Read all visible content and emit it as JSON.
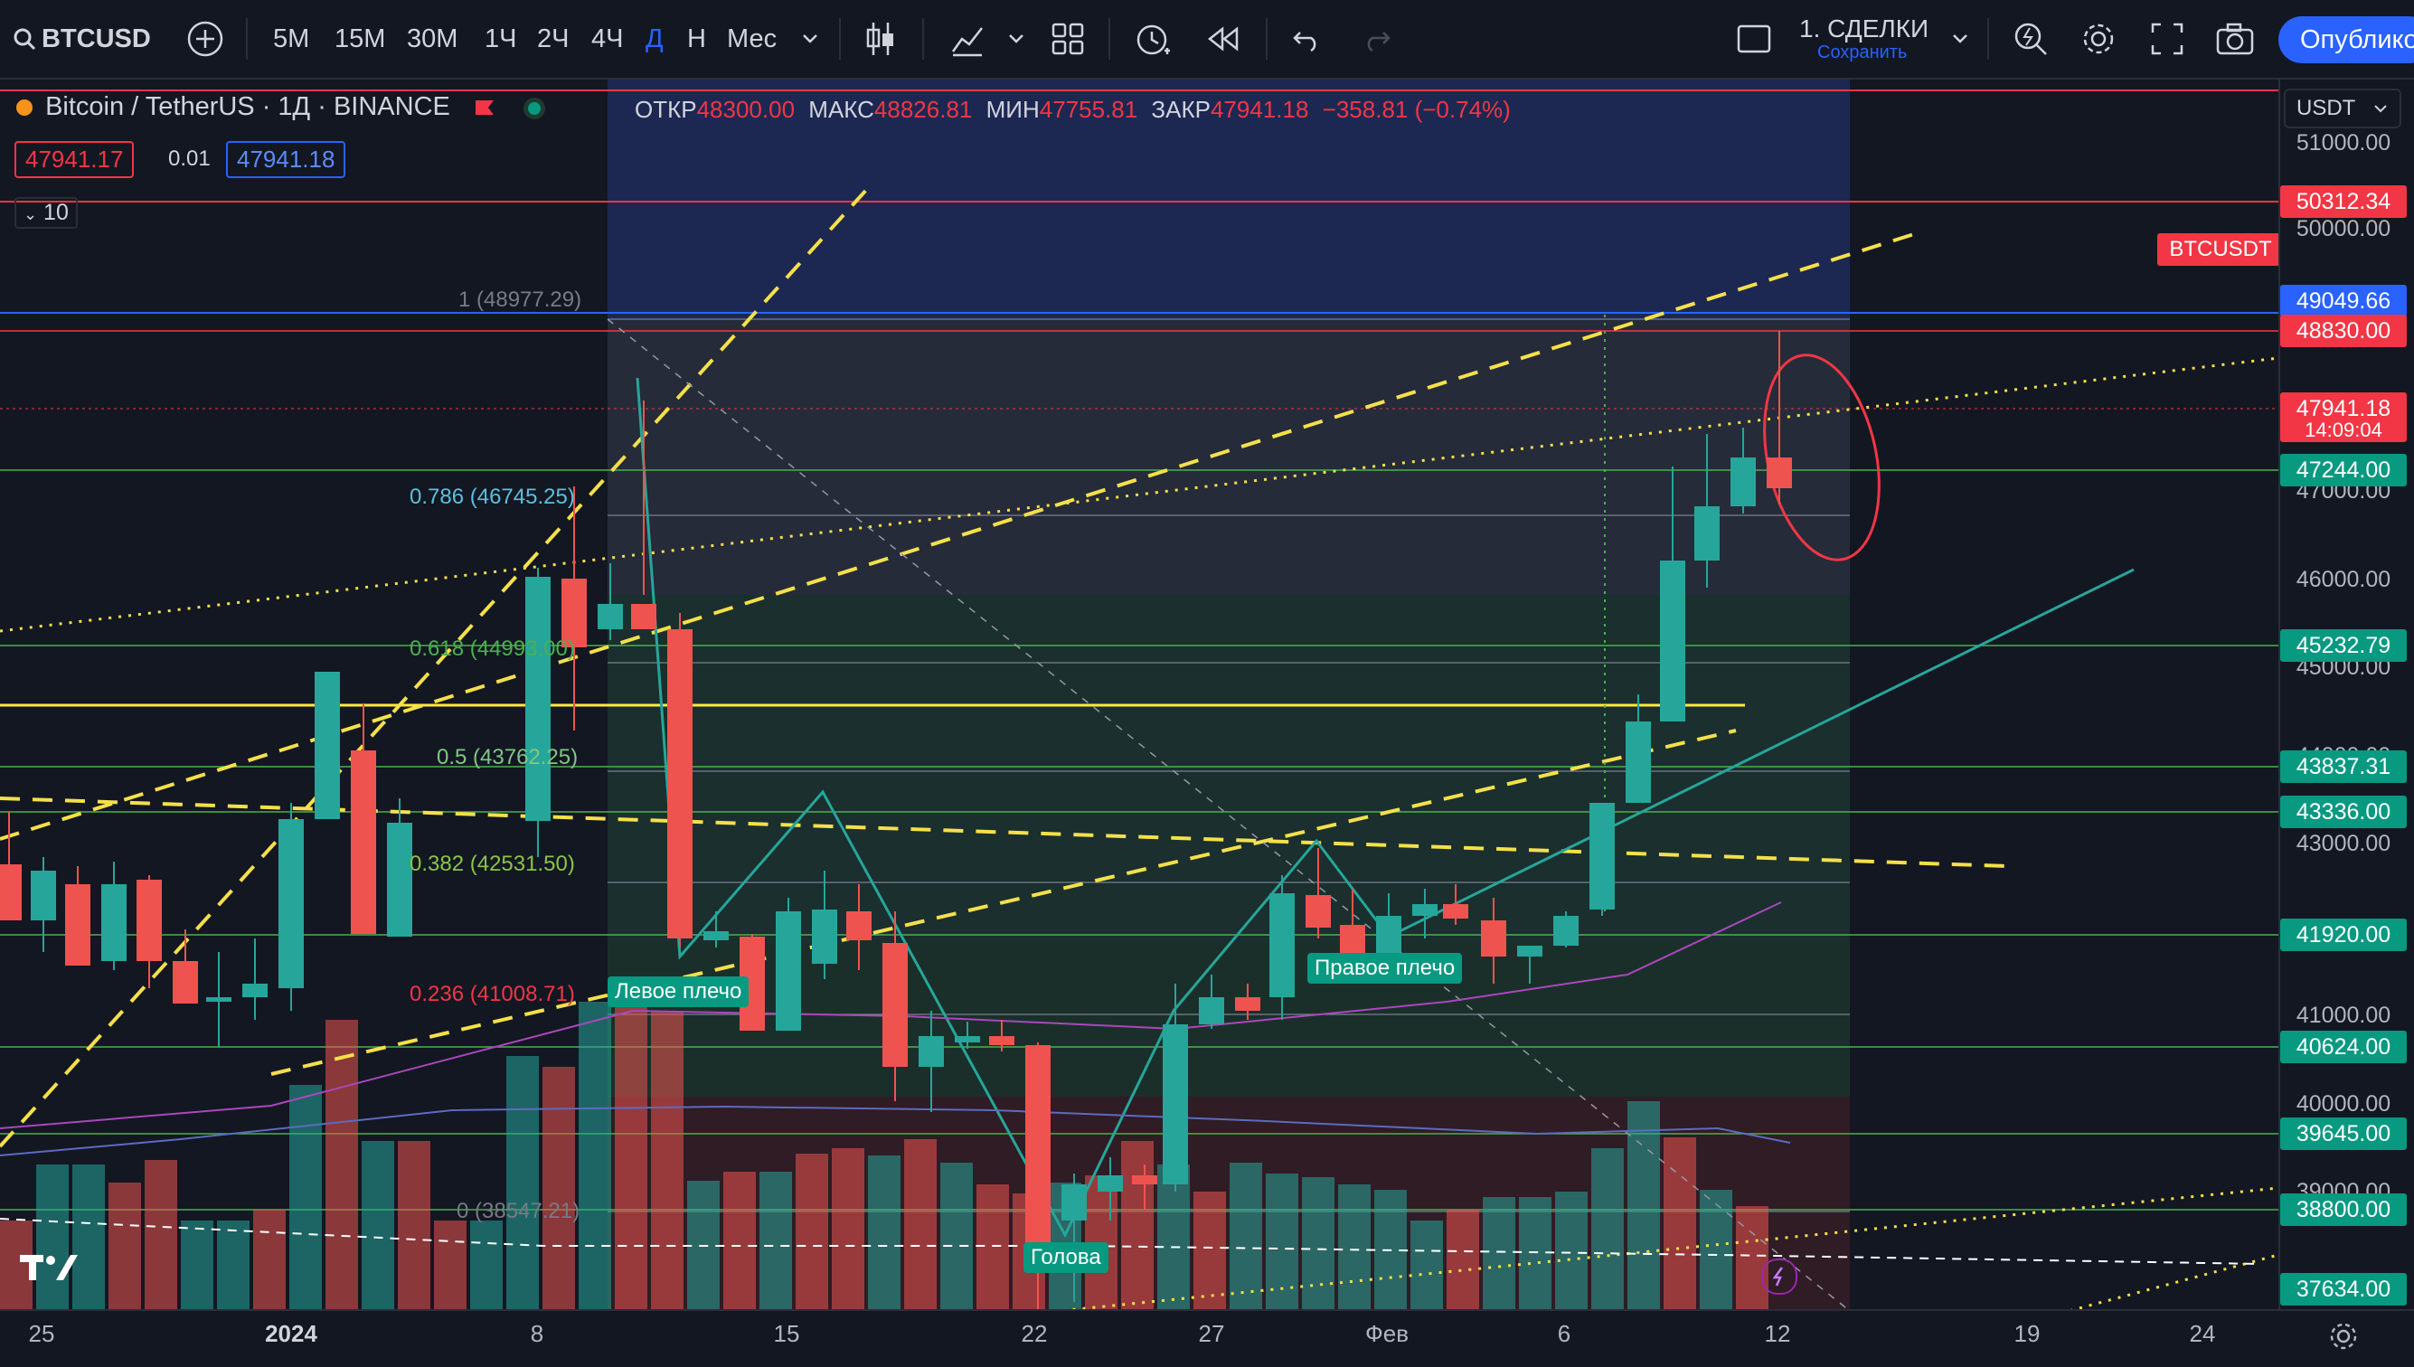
{
  "toolbar": {
    "symbol": "BTCUSD",
    "intervals": [
      "5M",
      "15M",
      "30M",
      "1Ч",
      "2Ч",
      "4Ч",
      "Д",
      "Н",
      "Мес"
    ],
    "active_interval": "Д",
    "layout_title": "1. СДЕЛКИ",
    "layout_sub": "Сохранить",
    "publish_label": "Опублико"
  },
  "legend": {
    "title": "Bitcoin / TetherUS · 1Д · BINANCE",
    "open_label": "ОТКР",
    "open": "48300.00",
    "high_label": "МАКС",
    "high": "48826.81",
    "low_label": "МИН",
    "low": "47755.81",
    "close_label": "ЗАКР",
    "close": "47941.18",
    "change": "−358.81 (−0.74%)",
    "sell_price": "47941.17",
    "spread": "0.01",
    "buy_price": "47941.18",
    "indicators_count": "10"
  },
  "currency": "USDT",
  "price_axis_labels": [
    "51000.00",
    "50000.00",
    "47000.00",
    "46000.00",
    "45000.00",
    "44000.00",
    "43000.00",
    "41000.00",
    "40000.00",
    "39000.00"
  ],
  "price_badges": [
    {
      "text": "50312.34",
      "color": "#f23645"
    },
    {
      "text": "49049.66",
      "color": "#2962ff"
    },
    {
      "text": "48830.00",
      "color": "#f23645"
    },
    {
      "text": "47941.18",
      "color": "#f23645"
    },
    {
      "text": "14:09:04",
      "color": "#f23645"
    },
    {
      "text": "47244.00",
      "color": "#089981"
    },
    {
      "text": "45232.79",
      "color": "#089981"
    },
    {
      "text": "43837.31",
      "color": "#089981"
    },
    {
      "text": "43336.00",
      "color": "#089981"
    },
    {
      "text": "41920.00",
      "color": "#089981"
    },
    {
      "text": "40624.00",
      "color": "#089981"
    },
    {
      "text": "39645.00",
      "color": "#089981"
    },
    {
      "text": "38800.00",
      "color": "#089981"
    },
    {
      "text": "37634.00",
      "color": "#089981"
    }
  ],
  "symbol_tag": "BTCUSDT",
  "fib_labels": [
    {
      "text": "1 (48977.29)",
      "color": "#787b86"
    },
    {
      "text": "0.786 (46745.25)",
      "color": "#5bc0de"
    },
    {
      "text": "0.618 (44993.00)",
      "color": "#4caf50"
    },
    {
      "text": "0.5 (43762.25)",
      "color": "#81c784"
    },
    {
      "text": "0.382 (42531.50)",
      "color": "#8bc34a"
    },
    {
      "text": "0.236 (41008.71)",
      "color": "#f23645"
    },
    {
      "text": "0 (38547.21)",
      "color": "#787b86"
    }
  ],
  "pattern_labels": {
    "left_shoulder": "Левое плечо",
    "head": "Голова",
    "right_shoulder": "Правое плечо"
  },
  "time_axis": [
    "25",
    "2024",
    "8",
    "15",
    "22",
    "27",
    "Фев",
    "6",
    "12",
    "19",
    "24"
  ],
  "colors": {
    "up": "#26a69a",
    "down": "#ef5350",
    "background": "#131722",
    "accent": "#2962ff"
  }
}
